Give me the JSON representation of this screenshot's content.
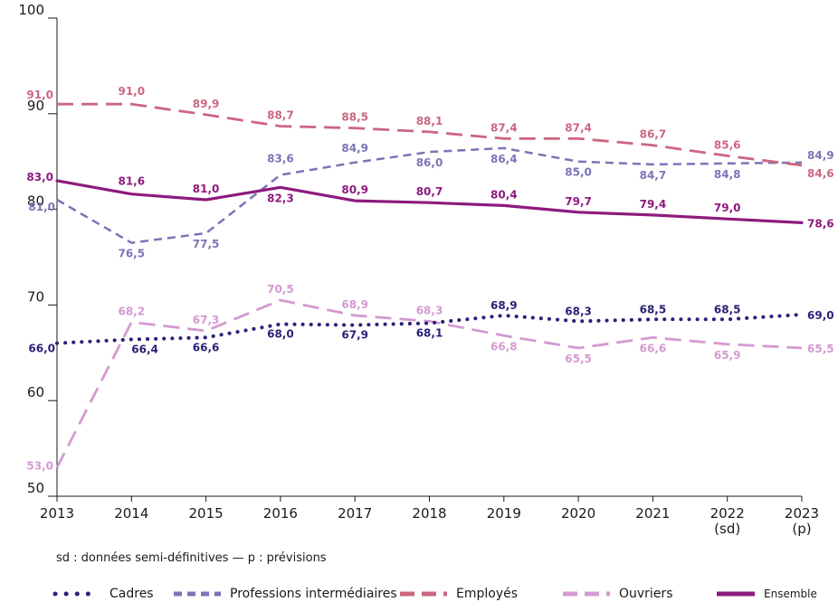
{
  "chart_data": {
    "type": "line",
    "x": [
      "2013",
      "2014",
      "2015",
      "2016",
      "2017",
      "2018",
      "2019",
      "2020",
      "2021",
      "2022",
      "2023"
    ],
    "x_tick_labels": [
      "2013",
      "2014",
      "2015",
      "2016",
      "2017",
      "2018",
      "2019",
      "2020",
      "2021",
      "2022\n(sd)",
      "2023\n(p)"
    ],
    "ylim": [
      50,
      100
    ],
    "y_ticks": [
      "50",
      "60",
      "70",
      "80",
      "90",
      "100"
    ],
    "grid": false,
    "note": "sd : données semi-définitives — p : prévisions",
    "legend_position": "bottom",
    "series": [
      {
        "name": "Cadres",
        "color": "#2a2278",
        "style": "dotted",
        "values": [
          66.0,
          66.4,
          66.6,
          68.0,
          67.9,
          68.1,
          68.9,
          68.3,
          68.5,
          68.5,
          69.0
        ],
        "labels": [
          "66,0",
          "66,4",
          "66,6",
          "68,0",
          "67,9",
          "68,1",
          "68,9",
          "68,3",
          "68,5",
          "68,5",
          "69,0"
        ]
      },
      {
        "name": "Professions intermédiaires",
        "color": "#7a75b8",
        "style": "short-dash",
        "values": [
          81.0,
          76.5,
          77.5,
          83.6,
          84.9,
          86.0,
          86.4,
          85.0,
          84.7,
          84.8,
          84.9
        ],
        "labels": [
          "81,0",
          "76,5",
          "77,5",
          "83,6",
          "84,9",
          "86,0",
          "86,4",
          "85,0",
          "84,7",
          "84,8",
          "84,9"
        ]
      },
      {
        "name": "Employés",
        "color": "#cc6680",
        "style": "long-dash",
        "values": [
          91.0,
          91.0,
          89.9,
          88.7,
          88.5,
          88.1,
          87.4,
          87.4,
          86.7,
          85.6,
          84.6
        ],
        "labels": [
          "91,0",
          "91,0",
          "89,9",
          "88,7",
          "88,5",
          "88,1",
          "87,4",
          "87,4",
          "86,7",
          "85,6",
          "84,6"
        ]
      },
      {
        "name": "Ouvriers",
        "color": "#d49ad0",
        "style": "long-dash",
        "values": [
          53.0,
          68.2,
          67.3,
          70.5,
          68.9,
          68.3,
          66.8,
          65.5,
          66.6,
          65.9,
          65.5
        ],
        "labels": [
          "53,0",
          "68,2",
          "67,3",
          "70,5",
          "68,9",
          "68,3",
          "66,8",
          "65,5",
          "66,6",
          "65,9",
          "65,5"
        ]
      },
      {
        "name": "Ensemble",
        "color": "#8e1a7e",
        "style": "solid",
        "values": [
          83.0,
          81.6,
          81.0,
          82.3,
          80.9,
          80.7,
          80.4,
          79.7,
          79.4,
          79.0,
          78.6
        ],
        "labels": [
          "83,0",
          "81,6",
          "81,0",
          "82,3",
          "80,9",
          "80,7",
          "80,4",
          "79,7",
          "79,4",
          "79,0",
          "78,6"
        ]
      }
    ]
  }
}
